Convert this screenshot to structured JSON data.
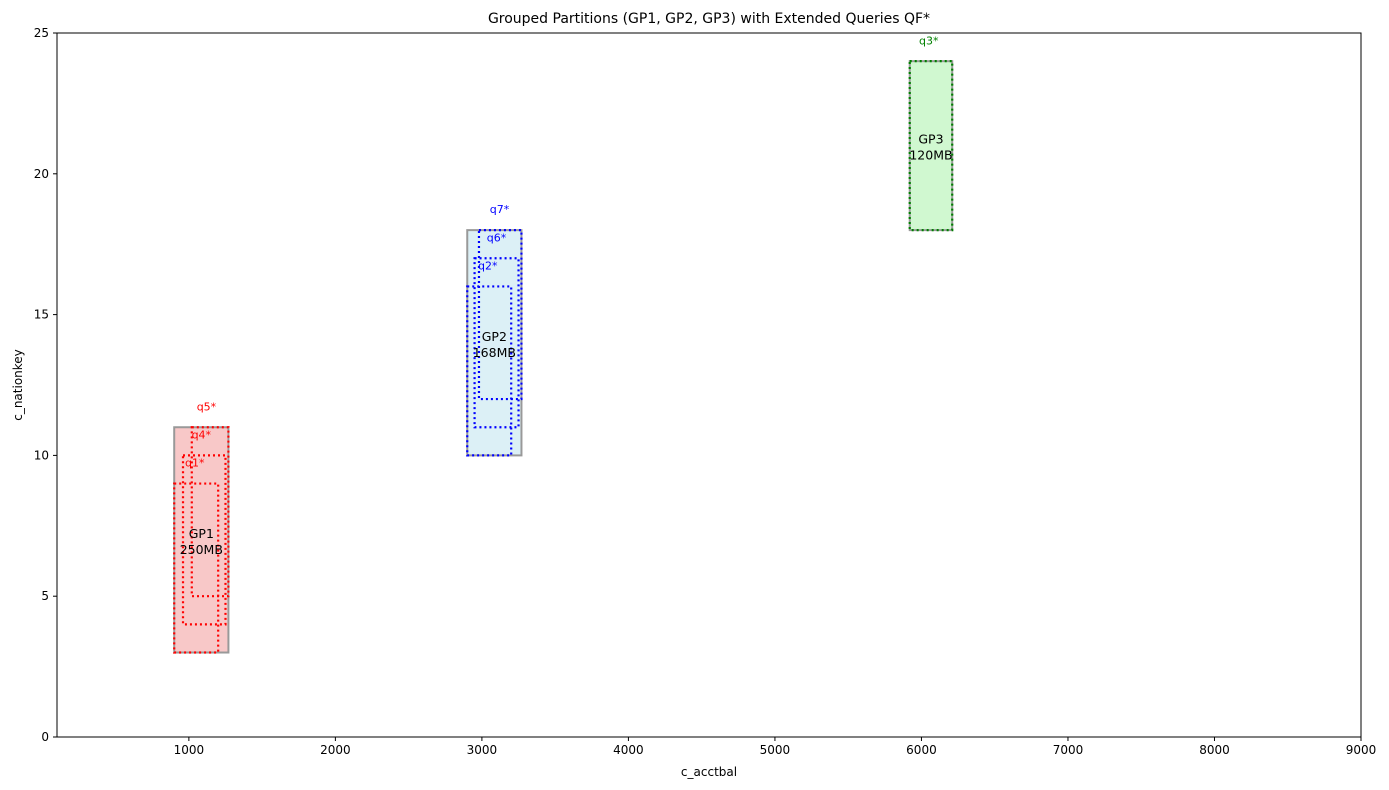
{
  "chart_data": {
    "type": "rectangles",
    "title": "Grouped Partitions (GP1, GP2, GP3) with Extended Queries QF*",
    "xlabel": "c_acctbal",
    "ylabel": "c_nationkey",
    "xlim": [
      100,
      9000
    ],
    "ylim": [
      0,
      25
    ],
    "xticks": [
      1000,
      2000,
      3000,
      4000,
      5000,
      6000,
      7000,
      8000,
      9000
    ],
    "yticks": [
      0,
      5,
      10,
      15,
      20,
      25
    ],
    "grid": false,
    "partitions": [
      {
        "name": "GP1",
        "size": "250MB",
        "x0": 900,
        "x1": 1270,
        "y0": 3,
        "y1": 11,
        "fill": "#f8c8c8"
      },
      {
        "name": "GP2",
        "size": "168MB",
        "x0": 2900,
        "x1": 3270,
        "y0": 10,
        "y1": 18,
        "fill": "#dcf0f6"
      },
      {
        "name": "GP3",
        "size": "120MB",
        "x0": 5920,
        "x1": 6210,
        "y0": 18,
        "y1": 24,
        "fill": "#d0f8d0"
      }
    ],
    "queries": [
      {
        "label": "q1*",
        "color": "#ff0000",
        "x0": 900,
        "x1": 1200,
        "y0": 3,
        "y1": 9,
        "label_x": 1040,
        "label_y": 9.6
      },
      {
        "label": "q4*",
        "color": "#ff0000",
        "x0": 960,
        "x1": 1250,
        "y0": 4,
        "y1": 10,
        "label_x": 1085,
        "label_y": 10.6
      },
      {
        "label": "q5*",
        "color": "#ff0000",
        "x0": 1020,
        "x1": 1270,
        "y0": 5,
        "y1": 11,
        "label_x": 1120,
        "label_y": 11.6
      },
      {
        "label": "q2*",
        "color": "#0000ff",
        "x0": 2900,
        "x1": 3200,
        "y0": 10,
        "y1": 16,
        "label_x": 3040,
        "label_y": 16.6
      },
      {
        "label": "q6*",
        "color": "#0000ff",
        "x0": 2950,
        "x1": 3250,
        "y0": 11,
        "y1": 17,
        "label_x": 3100,
        "label_y": 17.6
      },
      {
        "label": "q7*",
        "color": "#0000ff",
        "x0": 2980,
        "x1": 3270,
        "y0": 12,
        "y1": 18,
        "label_x": 3120,
        "label_y": 18.6
      },
      {
        "label": "q3*",
        "color": "#008000",
        "x0": 5920,
        "x1": 6210,
        "y0": 18,
        "y1": 24,
        "label_x": 6050,
        "label_y": 24.6
      }
    ],
    "border_color": "#999999"
  }
}
